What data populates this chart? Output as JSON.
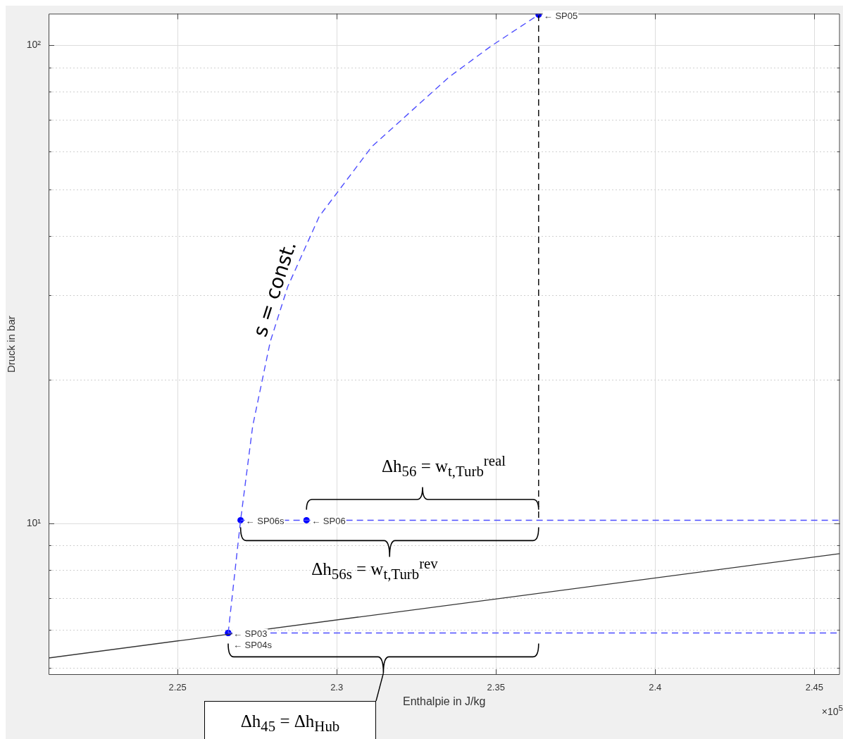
{
  "chart_data": {
    "type": "line",
    "xlabel": "Enthalpie in J/kg",
    "ylabel": "Druck in bar",
    "log": "y",
    "grid": true,
    "xlim": [
      2.2095,
      2.458
    ],
    "ylim": [
      4.83,
      116.5
    ],
    "xticks": [
      2.25,
      2.3,
      2.35,
      2.4,
      2.45
    ],
    "yticks": [
      {
        "value": 5,
        "label": null
      },
      {
        "value": 6,
        "label": null
      },
      {
        "value": 7,
        "label": null
      },
      {
        "value": 8,
        "label": null
      },
      {
        "value": 9,
        "label": null
      },
      {
        "value": 10,
        "label": "10¹"
      },
      {
        "value": 20,
        "label": null
      },
      {
        "value": 30,
        "label": null
      },
      {
        "value": 40,
        "label": null
      },
      {
        "value": 50,
        "label": null
      },
      {
        "value": 60,
        "label": null
      },
      {
        "value": 70,
        "label": null
      },
      {
        "value": 80,
        "label": null
      },
      {
        "value": 90,
        "label": null
      },
      {
        "value": 100,
        "label": "10²"
      }
    ],
    "series": [
      {
        "color": "#4d4dff",
        "line_style": "dashed",
        "x": [
          2.2659,
          2.2698,
          2.2736,
          2.2791,
          2.2846,
          2.2945,
          2.311,
          2.3352,
          2.3485,
          2.3634
        ],
        "values": [
          5.91,
          10.17,
          16.0,
          24.0,
          31.3,
          43.9,
          61.4,
          85.8,
          99.7,
          115.9
        ]
      },
      {
        "color": "#4d4dff",
        "line_style": "dashed",
        "x": [
          2.2698,
          2.458
        ],
        "values": [
          10.17,
          10.17
        ]
      },
      {
        "color": "#4d4dff",
        "line_style": "dashed",
        "x": [
          2.2659,
          2.458
        ],
        "values": [
          5.91,
          5.91
        ]
      },
      {
        "color": "#333333",
        "line_style": "solid",
        "x": [
          2.2095,
          2.458
        ],
        "values": [
          5.24,
          8.66
        ]
      },
      {
        "color": "#000000",
        "line_style": "dashed",
        "x": [
          2.3634,
          2.3634
        ],
        "values": [
          115.9,
          10.17
        ]
      },
      {
        "type": "scatter",
        "color": "#0000ff",
        "marker": "circle",
        "x": [
          2.2659,
          2.2659,
          2.2698,
          2.2905,
          2.3634
        ],
        "values": [
          5.91,
          5.91,
          10.17,
          10.17,
          115.9
        ],
        "value_labels": [
          "← SP03",
          "← SP04s",
          "← SP06s",
          "← SP06",
          "← SP05"
        ]
      }
    ],
    "annotations": [
      "s = const.",
      "Δh$_{56}$ = w$_{t,Turb}$$^{real}$",
      "Δh$_{56s}$ = w$_{t,Turb}$$^{rev}$",
      "Δh$_{45}$ = Δh$_{Hub}$",
      "×10$^{5}$"
    ]
  }
}
